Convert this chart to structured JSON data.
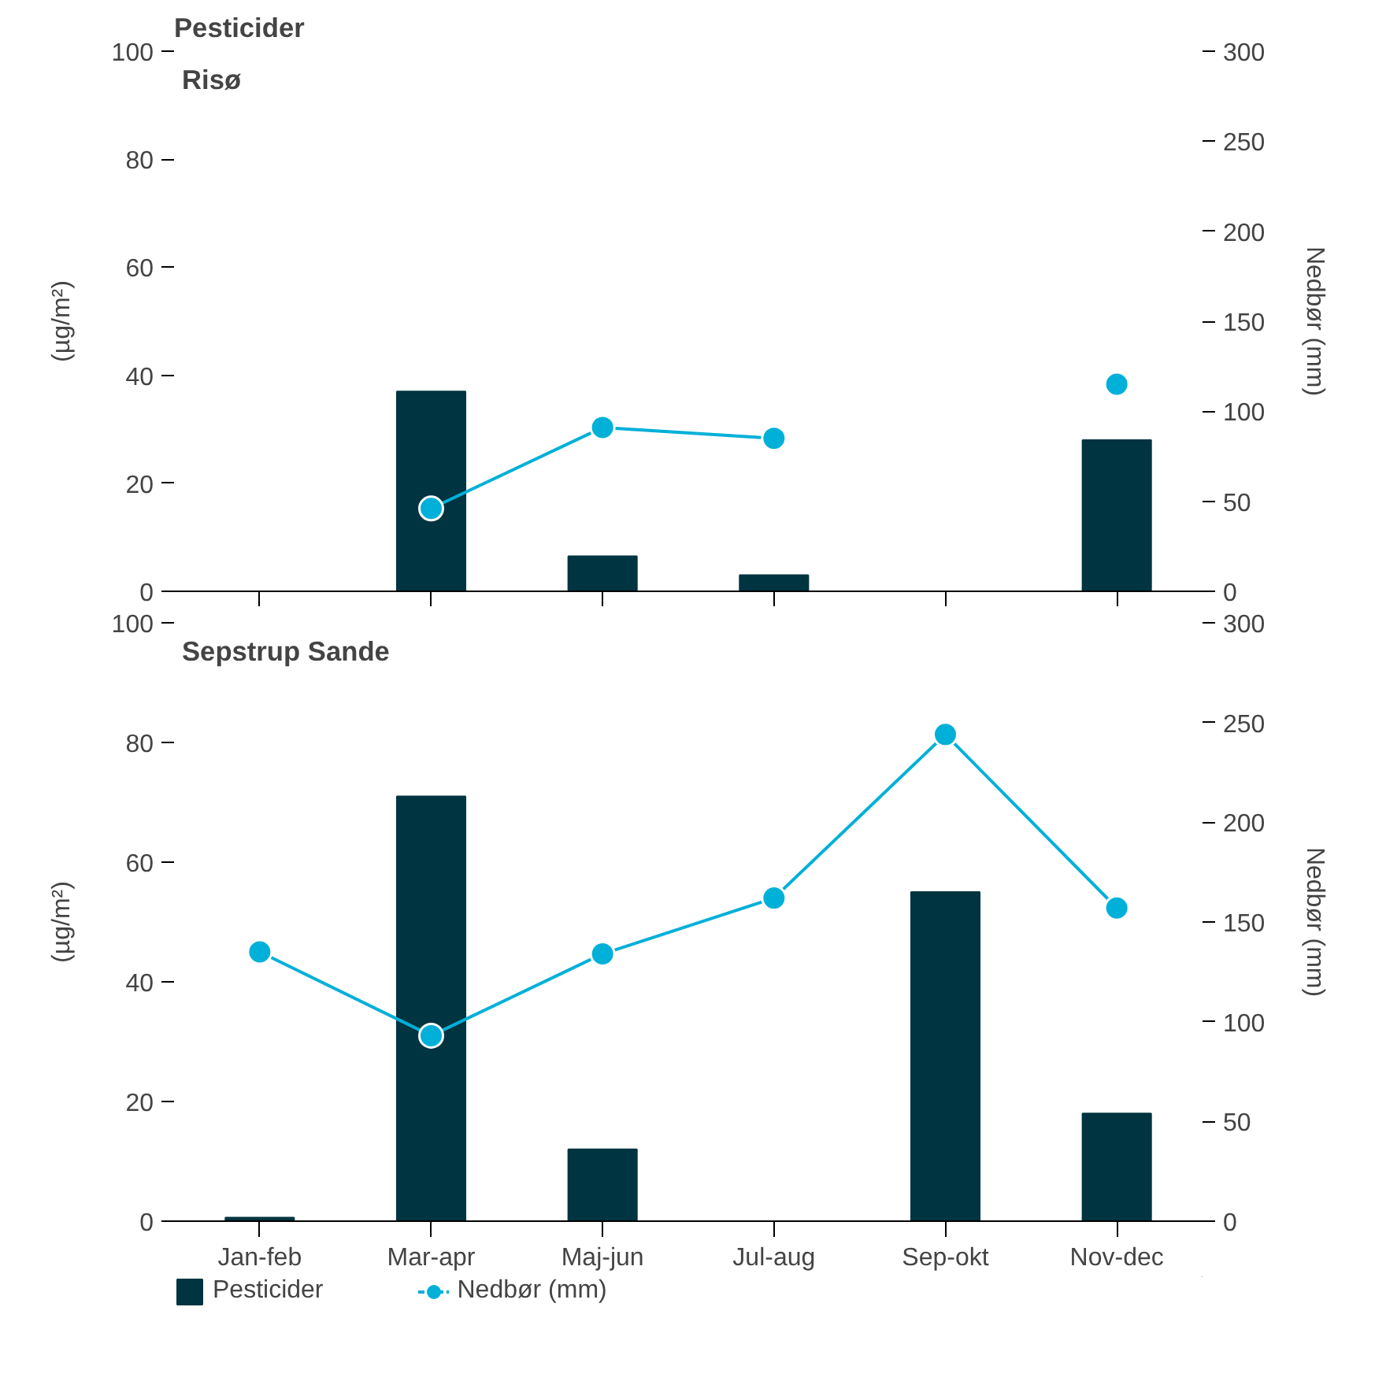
{
  "chart_data": [
    {
      "type": "bar",
      "title": "Pesticider",
      "subtitle": "Risø",
      "ylabel": "(µg/m²)",
      "y2label": "Nedbør (mm)",
      "series": [
        {
          "color": "#003440",
          "values": [
            null,
            37,
            6.5,
            3,
            null,
            28
          ]
        },
        {
          "type": "line",
          "axis": "y2",
          "color": "#00b0d8",
          "values": [
            null,
            46,
            91,
            85,
            null,
            115
          ]
        }
      ],
      "ylim": [
        0,
        100
      ],
      "yticks": [
        0,
        20,
        40,
        60,
        80,
        100
      ],
      "y2lim": [
        0,
        300
      ],
      "y2ticks": [
        0,
        50,
        100,
        150,
        200,
        250,
        300
      ],
      "tick_labels": "y",
      "marker": "circle",
      "line_style": "solid",
      "categories": [
        null,
        null,
        null,
        null,
        null,
        null
      ]
    },
    {
      "type": "bar",
      "subtitle": "Sepstrup Sande",
      "ylabel": "(µg/m²)",
      "y2label": "Nedbør (mm)",
      "categories": [
        "Jan-feb",
        "Mar-apr",
        "Maj-jun",
        "Jul-aug",
        "Sep-okt",
        "Nov-dec"
      ],
      "series": [
        {
          "name": "Pesticider",
          "color": "#003440",
          "values": [
            0.6,
            71,
            12,
            null,
            55,
            18
          ]
        },
        {
          "name": "Nedbør (mm)",
          "type": "line",
          "axis": "y2",
          "color": "#00b0d8",
          "values": [
            135,
            93,
            134,
            162,
            244,
            157
          ]
        }
      ],
      "ylim": [
        0,
        100
      ],
      "yticks": [
        0,
        20,
        40,
        60,
        80,
        100
      ],
      "y2lim": [
        0,
        300
      ],
      "y2ticks": [
        0,
        50,
        100,
        150,
        200,
        250,
        300
      ],
      "legend": "bottom",
      "marker": "circle",
      "line_style": "solid"
    }
  ]
}
